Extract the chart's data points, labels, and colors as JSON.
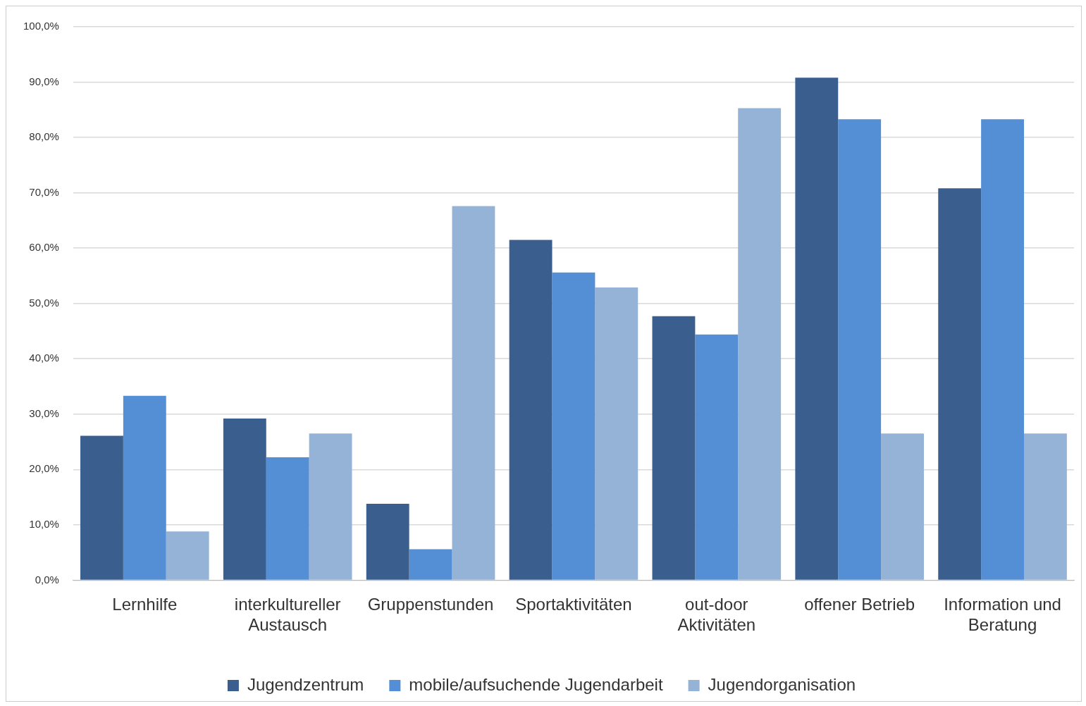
{
  "chart_data": {
    "type": "bar",
    "categories": [
      "Lernhilfe",
      "interkultureller Austausch",
      "Gruppenstunden",
      "Sportaktivitäten",
      "out-door Aktivitäten",
      "offener Betrieb",
      "Information und Beratung"
    ],
    "series": [
      {
        "name": "Jugendzentrum",
        "color": "#3a5f8f",
        "values": [
          26.1,
          29.2,
          13.8,
          61.5,
          47.7,
          90.8,
          70.8
        ]
      },
      {
        "name": "mobile/aufsuchende Jugendarbeit",
        "color": "#548fd5",
        "values": [
          33.3,
          22.2,
          5.6,
          55.6,
          44.4,
          83.3,
          83.3
        ]
      },
      {
        "name": "Jugendorganisation",
        "color": "#95b3d7",
        "values": [
          8.8,
          26.5,
          67.6,
          52.9,
          85.3,
          26.5,
          26.5
        ]
      }
    ],
    "ylim": [
      0,
      100
    ],
    "yticks": [
      {
        "value": 0,
        "label": "0,0%"
      },
      {
        "value": 10,
        "label": "10,0%"
      },
      {
        "value": 20,
        "label": "20,0%"
      },
      {
        "value": 30,
        "label": "30,0%"
      },
      {
        "value": 40,
        "label": "40,0%"
      },
      {
        "value": 50,
        "label": "50,0%"
      },
      {
        "value": 60,
        "label": "60,0%"
      },
      {
        "value": 70,
        "label": "70,0%"
      },
      {
        "value": 80,
        "label": "80,0%"
      },
      {
        "value": 90,
        "label": "90,0%"
      },
      {
        "value": 100,
        "label": "100,0%"
      }
    ],
    "grid": "y",
    "legend": "bottom"
  }
}
